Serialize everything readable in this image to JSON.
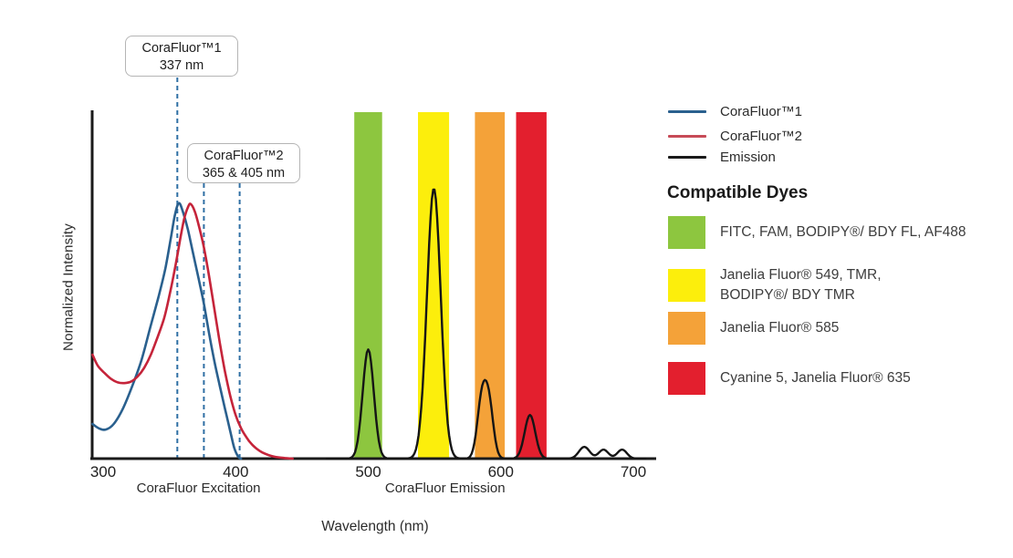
{
  "chart_data": {
    "type": "line",
    "title": "",
    "xlabel": "Wavelength (nm)",
    "ylabel": "Normalized Intensity",
    "x_ticks": [
      300,
      400,
      500,
      600,
      700
    ],
    "xlim": [
      292,
      717
    ],
    "ylim": [
      0,
      1
    ],
    "grid": false,
    "axis_sublabels": [
      {
        "label": "CoraFluor Excitation",
        "center_nm": 372
      },
      {
        "label": "CoraFluor Emission",
        "center_nm": 558
      }
    ],
    "annotations": [
      {
        "name": "corafluor1-callout",
        "lines": [
          "CoraFluor™1",
          "337 nm"
        ],
        "labeled_nm": [
          337
        ],
        "drawn_marker_nm": [
          356
        ]
      },
      {
        "name": "corafluor2-callout",
        "lines": [
          "CoraFluor™2",
          "365 & 405 nm"
        ],
        "labeled_nm": [
          365,
          405
        ],
        "drawn_marker_nm": [
          376,
          403
        ]
      }
    ],
    "marker_line_color": "#2f6fa4",
    "bands": [
      {
        "name": "FITC, FAM, BODIPY®/ BDY FL, AF488",
        "from_nm": 489.5,
        "to_nm": 510.5,
        "color": "#8dc63f"
      },
      {
        "name": "Janelia Fluor® 549, TMR, BODIPY®/ BDY TMR",
        "from_nm": 537.5,
        "to_nm": 561,
        "color": "#fcee0c"
      },
      {
        "name": "Janelia Fluor® 585",
        "from_nm": 580.5,
        "to_nm": 603,
        "color": "#f4a239"
      },
      {
        "name": "Cyanine 5, Janelia Fluor® 635",
        "from_nm": 611.5,
        "to_nm": 634.5,
        "color": "#e31f2e"
      }
    ],
    "series": [
      {
        "name": "CoraFluor™1",
        "kind": "excitation",
        "color": "#2a608e",
        "points": [
          [
            292,
            0.1
          ],
          [
            297,
            0.087
          ],
          [
            302,
            0.084
          ],
          [
            308,
            0.1
          ],
          [
            315,
            0.145
          ],
          [
            322,
            0.21
          ],
          [
            329,
            0.285
          ],
          [
            336,
            0.385
          ],
          [
            342,
            0.47
          ],
          [
            347,
            0.55
          ],
          [
            351,
            0.635
          ],
          [
            354,
            0.7
          ],
          [
            357,
            0.737
          ],
          [
            360,
            0.715
          ],
          [
            364,
            0.66
          ],
          [
            368,
            0.59
          ],
          [
            372,
            0.52
          ],
          [
            376,
            0.447
          ],
          [
            380,
            0.36
          ],
          [
            384,
            0.28
          ],
          [
            388,
            0.21
          ],
          [
            392,
            0.143
          ],
          [
            396,
            0.078
          ],
          [
            399,
            0.03
          ],
          [
            402,
            0.005
          ],
          [
            404,
            0.0
          ]
        ]
      },
      {
        "name": "CoraFluor™2",
        "kind": "excitation",
        "color": "#c5243a",
        "points": [
          [
            292,
            0.3
          ],
          [
            296,
            0.268
          ],
          [
            301,
            0.247
          ],
          [
            306,
            0.23
          ],
          [
            311,
            0.22
          ],
          [
            316,
            0.218
          ],
          [
            321,
            0.222
          ],
          [
            326,
            0.237
          ],
          [
            331,
            0.262
          ],
          [
            336,
            0.3
          ],
          [
            341,
            0.35
          ],
          [
            346,
            0.405
          ],
          [
            350,
            0.47
          ],
          [
            354,
            0.545
          ],
          [
            358,
            0.63
          ],
          [
            361,
            0.69
          ],
          [
            364,
            0.726
          ],
          [
            366,
            0.735
          ],
          [
            369,
            0.715
          ],
          [
            372,
            0.675
          ],
          [
            376,
            0.61
          ],
          [
            380,
            0.525
          ],
          [
            384,
            0.43
          ],
          [
            388,
            0.335
          ],
          [
            392,
            0.25
          ],
          [
            396,
            0.18
          ],
          [
            400,
            0.125
          ],
          [
            404,
            0.088
          ],
          [
            408,
            0.062
          ],
          [
            412,
            0.042
          ],
          [
            416,
            0.028
          ],
          [
            420,
            0.018
          ],
          [
            425,
            0.01
          ],
          [
            430,
            0.005
          ],
          [
            436,
            0.002
          ],
          [
            443,
            0.0
          ]
        ]
      },
      {
        "name": "Emission",
        "kind": "emission",
        "color": "#151515",
        "range_nm": [
          468,
          710
        ],
        "peaks": [
          {
            "center_nm": 500,
            "height": 0.315,
            "sigma_nm": 4.2
          },
          {
            "center_nm": 549.5,
            "height": 0.78,
            "sigma_nm": 5.2
          },
          {
            "center_nm": 585.5,
            "height": 0.16,
            "sigma_nm": 3.4
          },
          {
            "center_nm": 591.0,
            "height": 0.155,
            "sigma_nm": 3.4
          },
          {
            "center_nm": 622,
            "height": 0.126,
            "sigma_nm": 4.0
          },
          {
            "center_nm": 663,
            "height": 0.034,
            "sigma_nm": 4.0
          },
          {
            "center_nm": 677.5,
            "height": 0.026,
            "sigma_nm": 3.6
          },
          {
            "center_nm": 691.5,
            "height": 0.026,
            "sigma_nm": 3.6
          }
        ],
        "emission_maxima_nm": [
          500,
          550,
          590,
          622
        ]
      }
    ]
  },
  "legend": {
    "entries": [
      {
        "label": "CoraFluor™1",
        "color": "#2a608e"
      },
      {
        "label": "CoraFluor™2",
        "color": "#c74b57"
      },
      {
        "label": "Emission",
        "color": "#1a1a1a"
      }
    ],
    "compatible_dyes_title": "Compatible Dyes",
    "dyes": [
      {
        "color": "#8dc63f",
        "label": "FITC, FAM, BODIPY®/ BDY FL, AF488"
      },
      {
        "color": "#fcee0c",
        "label": "Janelia Fluor® 549, TMR,\nBODIPY®/ BDY TMR"
      },
      {
        "color": "#f4a239",
        "label": "Janelia Fluor® 585"
      },
      {
        "color": "#e31f2e",
        "label": "Cyanine 5, Janelia Fluor® 635"
      }
    ]
  }
}
